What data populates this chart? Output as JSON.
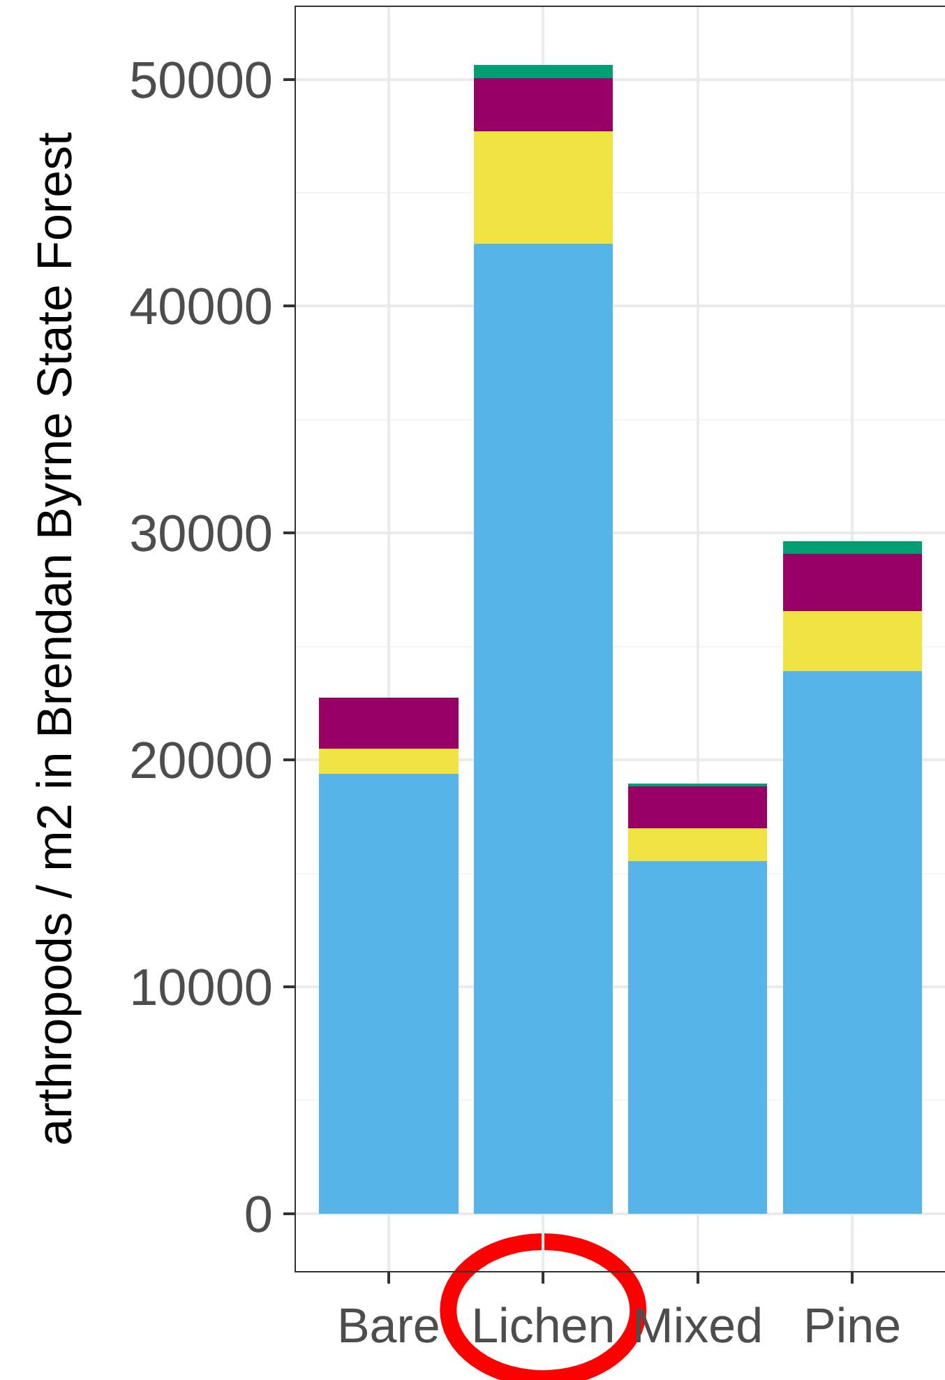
{
  "chart_data": {
    "type": "bar",
    "stacked": true,
    "ylabel": "arthropods / m2 in Brendan Byrne State Forest",
    "categories": [
      "Bare",
      "Lichen",
      "Mixed",
      "Pine"
    ],
    "series": [
      {
        "color": "#56b4e9",
        "values": [
          19400,
          42750,
          15550,
          23900
        ]
      },
      {
        "color": "#f0e442",
        "values": [
          1100,
          4950,
          1450,
          2650
        ]
      },
      {
        "color": "#990066",
        "values": [
          2250,
          2350,
          1850,
          2550
        ]
      },
      {
        "color": "#009e73",
        "values": [
          0,
          600,
          100,
          550
        ]
      }
    ],
    "ylim": [
      -2530,
      53190
    ],
    "yticks": [
      0,
      {
        "value": 5000,
        "label": null
      },
      10000,
      {
        "value": 15000,
        "label": null
      },
      20000,
      {
        "value": 25000,
        "label": null
      },
      30000,
      {
        "value": 35000,
        "label": null
      },
      40000,
      {
        "value": 45000,
        "label": null
      },
      50000
    ],
    "grid": true
  }
}
